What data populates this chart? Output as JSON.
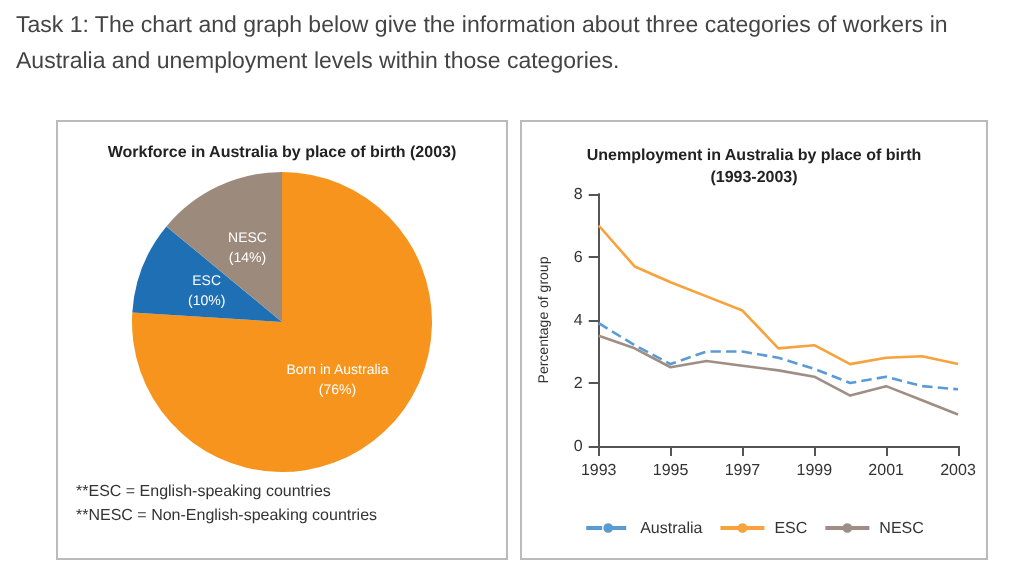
{
  "chart_data": [
    {
      "type": "pie",
      "title": "Workforce in Australia by place of birth (2003)",
      "categories": [
        "Born in Australia",
        "ESC",
        "NESC"
      ],
      "values": [
        76,
        10,
        14
      ],
      "colors": [
        "#f7941d",
        "#1f6fb5",
        "#9c8b7d"
      ],
      "value_labels": [
        "(76%)",
        "(10%)",
        "(14%)"
      ],
      "annotations": [
        "Task 1: The chart and graph below give the information about three categories of workers in Australia and unemployment levels within those categories.",
        "**ESC = English-speaking countries",
        "**NESC = Non-English-speaking countries"
      ]
    },
    {
      "type": "line",
      "title": "Unemployment in Australia by place of birth\n(1993-2003)",
      "ylabel": "Percentage of group",
      "x": [
        1993,
        1994,
        1995,
        1996,
        1997,
        1998,
        1999,
        2000,
        2001,
        2002,
        2003
      ],
      "series": [
        {
          "name": "Australia",
          "color": "#5b9bd5",
          "line_style": "dashed",
          "values": [
            3.9,
            3.2,
            2.6,
            3.0,
            3.0,
            2.8,
            2.45,
            2.0,
            2.2,
            1.9,
            1.8
          ]
        },
        {
          "name": "ESC",
          "color": "#f7a23b",
          "line_style": "solid",
          "values": [
            7.0,
            5.7,
            5.2,
            4.75,
            4.3,
            3.1,
            3.2,
            2.6,
            2.8,
            2.85,
            2.6
          ]
        },
        {
          "name": "NESC",
          "color": "#9e8e85",
          "line_style": "solid",
          "values": [
            3.5,
            3.1,
            2.5,
            2.7,
            2.55,
            2.4,
            2.2,
            1.6,
            1.9,
            1.45,
            1.0
          ]
        }
      ],
      "xlim": [
        1993,
        2003
      ],
      "xticks": [
        1993,
        1995,
        1997,
        1999,
        2001,
        2003
      ],
      "ylim": [
        0,
        8
      ],
      "yticks": [
        0,
        2,
        4,
        6,
        8
      ],
      "grid": false,
      "legend": "bottom",
      "marker": "none"
    }
  ]
}
